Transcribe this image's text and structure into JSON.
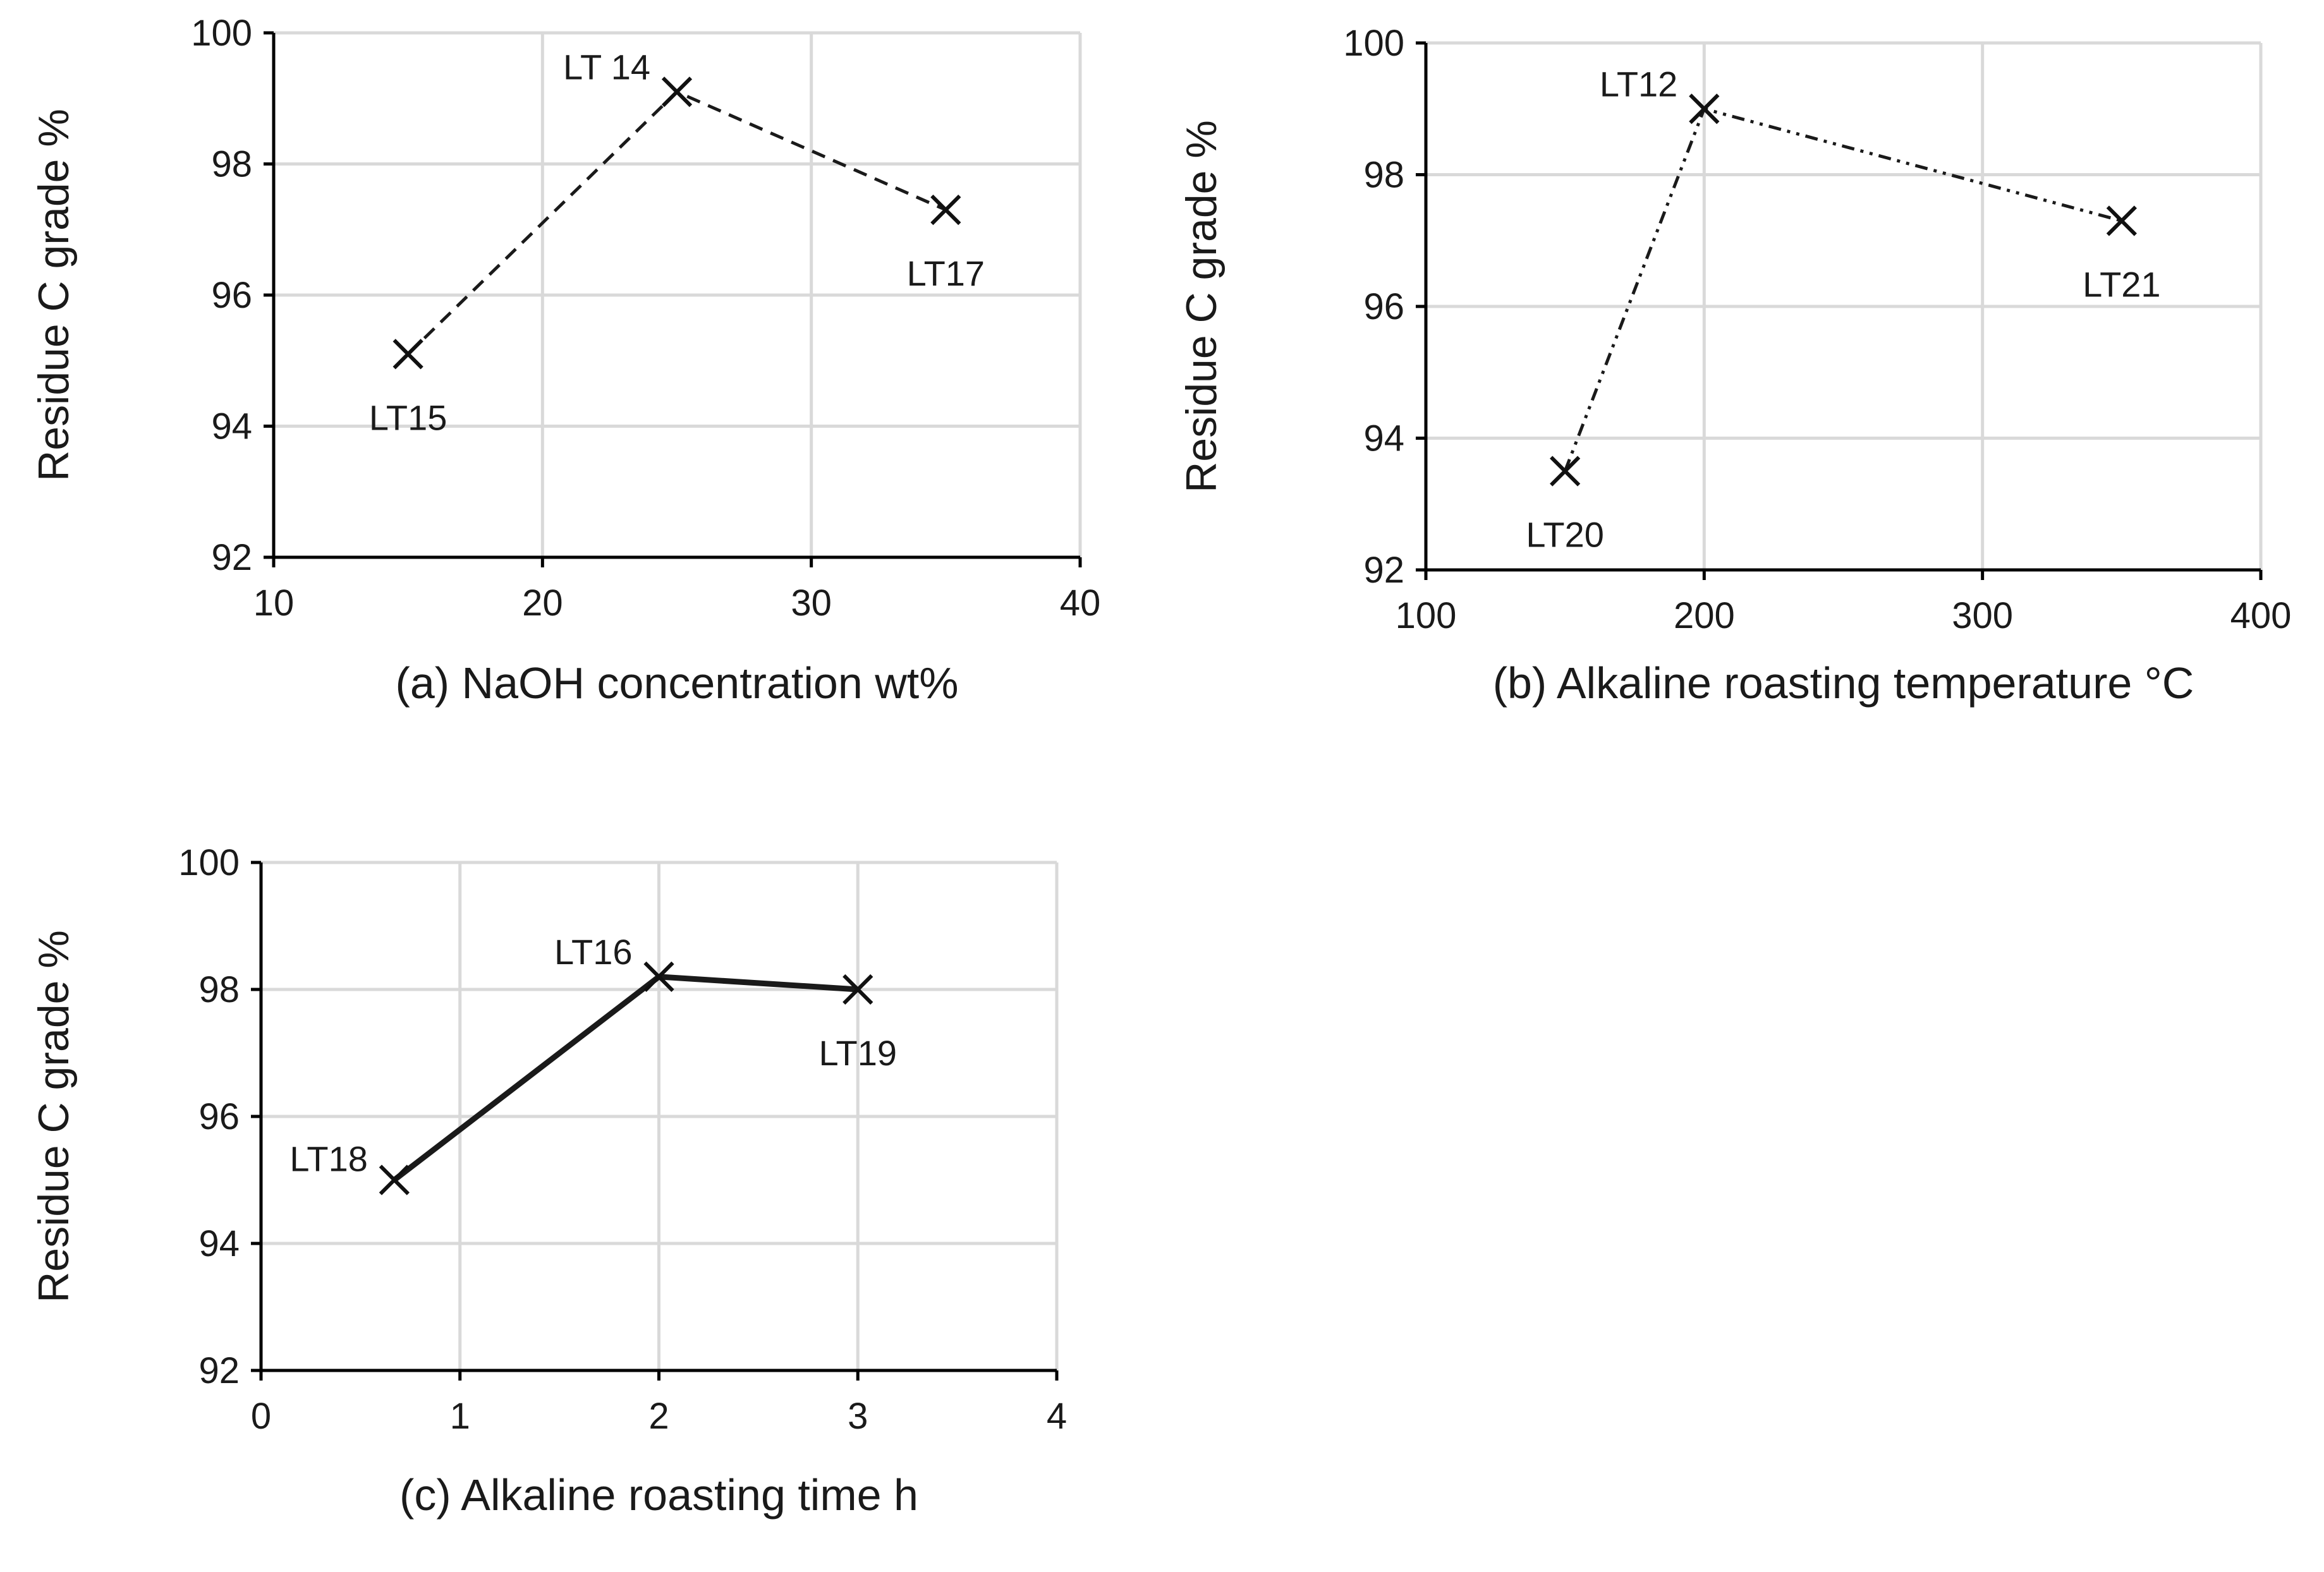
{
  "figure": {
    "background": "#ffffff",
    "grid_color": "#d9d9d9",
    "axis_color": "#000000",
    "line_color": "#1a1a1a"
  },
  "chart_data": [
    {
      "id": "a",
      "type": "line",
      "xlabel": "(a) NaOH concentration wt%",
      "ylabel": "Residue C grade %",
      "xlim": [
        10,
        40
      ],
      "ylim": [
        92,
        100
      ],
      "xticks": [
        10,
        20,
        30,
        40
      ],
      "yticks": [
        92,
        94,
        96,
        98,
        100
      ],
      "grid": true,
      "line_style": "dashed",
      "marker": "x",
      "series": [
        {
          "name": "Residue C grade",
          "points": [
            {
              "label": "LT15",
              "x": 15,
              "y": 95.1,
              "label_pos": "below"
            },
            {
              "label": "LT 14",
              "x": 25,
              "y": 99.1,
              "label_pos": "left"
            },
            {
              "label": "LT17",
              "x": 35,
              "y": 97.3,
              "label_pos": "below"
            }
          ]
        }
      ]
    },
    {
      "id": "b",
      "type": "line",
      "xlabel": "(b) Alkaline roasting temperature °C",
      "ylabel": "Residue C grade %",
      "xlim": [
        100,
        400
      ],
      "ylim": [
        92,
        100
      ],
      "xticks": [
        100,
        200,
        300,
        400
      ],
      "yticks": [
        92,
        94,
        96,
        98,
        100
      ],
      "grid": true,
      "line_style": "dashdotdot",
      "marker": "x",
      "series": [
        {
          "name": "Residue C grade",
          "points": [
            {
              "label": "LT20",
              "x": 150,
              "y": 93.5,
              "label_pos": "below"
            },
            {
              "label": "LT12",
              "x": 200,
              "y": 99.0,
              "label_pos": "left"
            },
            {
              "label": "LT21",
              "x": 350,
              "y": 97.3,
              "label_pos": "below"
            }
          ]
        }
      ]
    },
    {
      "id": "c",
      "type": "line",
      "xlabel": "(c) Alkaline roasting time h",
      "ylabel": "Residue C grade %",
      "xlim": [
        0,
        4
      ],
      "ylim": [
        92,
        100
      ],
      "xticks": [
        0,
        1,
        2,
        3,
        4
      ],
      "yticks": [
        92,
        94,
        96,
        98,
        100
      ],
      "grid": true,
      "line_style": "solid",
      "marker": "x",
      "series": [
        {
          "name": "Residue C grade",
          "points": [
            {
              "label": "LT18",
              "x": 0.67,
              "y": 95.0,
              "label_pos": "left"
            },
            {
              "label": "LT16",
              "x": 2,
              "y": 98.2,
              "label_pos": "left"
            },
            {
              "label": "LT19",
              "x": 3,
              "y": 98.0,
              "label_pos": "below"
            }
          ]
        }
      ]
    }
  ]
}
